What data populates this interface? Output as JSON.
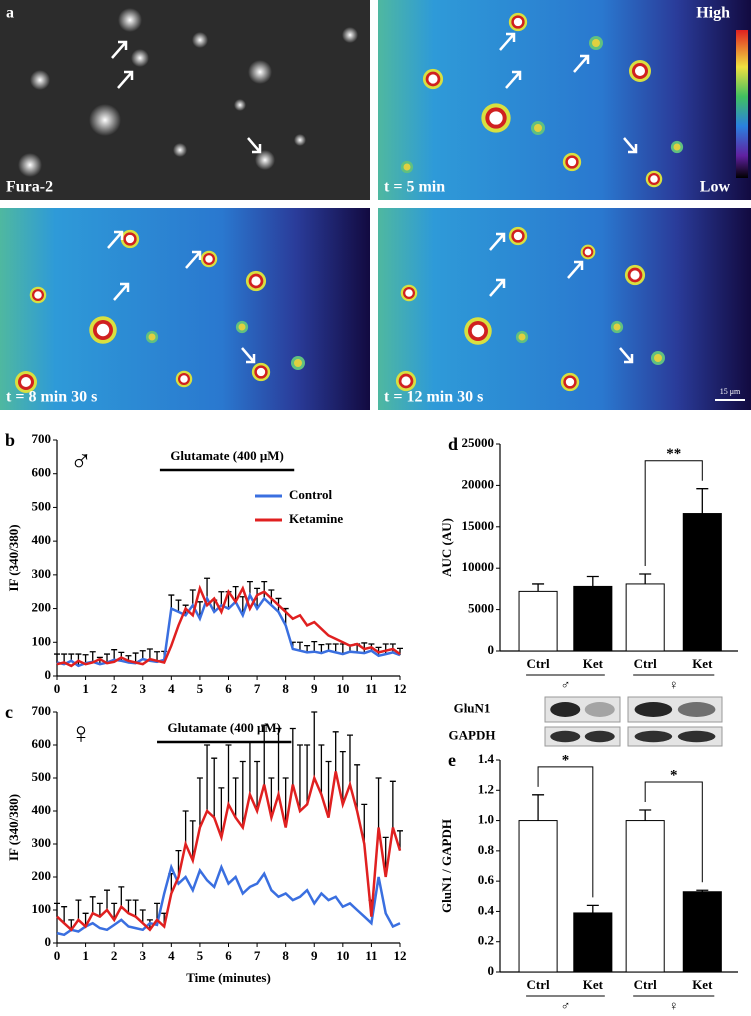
{
  "panel_a": {
    "label": "a",
    "images": [
      "Fura-2",
      "t = 5 min",
      "t = 8 min 30 s",
      "t = 12 min 30 s"
    ],
    "colorbar": [
      "High",
      "Low"
    ],
    "scale_bar": "15 μm"
  },
  "chart_data": [
    {
      "type": "line",
      "panel": "b",
      "symbol": "♂",
      "annotation": "Glutamate (400 μM)",
      "annotation_span": [
        3.6,
        8.3
      ],
      "ylabel": "IF (340/380)",
      "x": [
        0,
        0.25,
        0.5,
        0.75,
        1,
        1.25,
        1.5,
        1.75,
        2,
        2.25,
        2.5,
        2.75,
        3,
        3.25,
        3.5,
        3.75,
        4,
        4.25,
        4.5,
        4.75,
        5,
        5.25,
        5.5,
        5.75,
        6,
        6.25,
        6.5,
        6.75,
        7,
        7.25,
        7.5,
        7.75,
        8,
        8.25,
        8.5,
        8.75,
        9,
        9.25,
        9.5,
        9.75,
        10,
        10.25,
        10.5,
        10.75,
        11,
        11.25,
        11.5,
        11.75,
        12
      ],
      "xlim": [
        0,
        12
      ],
      "xticks": [
        0,
        1,
        2,
        3,
        4,
        5,
        6,
        7,
        8,
        9,
        10,
        11,
        12
      ],
      "ylim": [
        0,
        700
      ],
      "yticks": [
        0,
        100,
        200,
        300,
        400,
        500,
        600,
        700
      ],
      "series": [
        {
          "name": "Control",
          "color": "#3a6fe0",
          "values": [
            40,
            35,
            45,
            30,
            38,
            42,
            35,
            40,
            48,
            45,
            40,
            38,
            50,
            45,
            42,
            48,
            200,
            190,
            180,
            210,
            170,
            230,
            190,
            210,
            200,
            220,
            180,
            240,
            200,
            230,
            210,
            190,
            150,
            80,
            75,
            70,
            72,
            68,
            75,
            70,
            65,
            72,
            70,
            68,
            75,
            60,
            65,
            70,
            62
          ],
          "errors": [
            25,
            30,
            20,
            35,
            25,
            30,
            20,
            25,
            30,
            25,
            20,
            30,
            25,
            35,
            30,
            25,
            40,
            35,
            30,
            45,
            50,
            60,
            35,
            40,
            50,
            45,
            55,
            40,
            60,
            50,
            45,
            40,
            50,
            20,
            25,
            20,
            30,
            25,
            20,
            25,
            30,
            20,
            25,
            30,
            20,
            25,
            30,
            25,
            20
          ]
        },
        {
          "name": "Ketamine",
          "color": "#e02020",
          "values": [
            35,
            40,
            30,
            45,
            35,
            40,
            50,
            38,
            42,
            55,
            45,
            40,
            35,
            50,
            45,
            40,
            90,
            150,
            200,
            180,
            260,
            210,
            230,
            190,
            250,
            220,
            260,
            200,
            240,
            250,
            230,
            210,
            190,
            170,
            180,
            150,
            160,
            140,
            120,
            110,
            100,
            90,
            95,
            80,
            85,
            70,
            75,
            80,
            65
          ]
        }
      ]
    },
    {
      "type": "line",
      "panel": "c",
      "symbol": "♀",
      "annotation": "Glutamate (400 μM)",
      "annotation_span": [
        3.5,
        8.2
      ],
      "ylabel": "IF (340/380)",
      "xlabel": "Time (minutes)",
      "x": [
        0,
        0.25,
        0.5,
        0.75,
        1,
        1.25,
        1.5,
        1.75,
        2,
        2.25,
        2.5,
        2.75,
        3,
        3.25,
        3.5,
        3.75,
        4,
        4.25,
        4.5,
        4.75,
        5,
        5.25,
        5.5,
        5.75,
        6,
        6.25,
        6.5,
        6.75,
        7,
        7.25,
        7.5,
        7.75,
        8,
        8.25,
        8.5,
        8.75,
        9,
        9.25,
        9.5,
        9.75,
        10,
        10.25,
        10.5,
        10.75,
        11,
        11.25,
        11.5,
        11.75,
        12
      ],
      "xlim": [
        0,
        12
      ],
      "xticks": [
        0,
        1,
        2,
        3,
        4,
        5,
        6,
        7,
        8,
        9,
        10,
        11,
        12
      ],
      "ylim": [
        0,
        700
      ],
      "yticks": [
        0,
        100,
        200,
        300,
        400,
        500,
        600,
        700
      ],
      "series": [
        {
          "color": "#3a6fe0",
          "values": [
            30,
            25,
            40,
            35,
            50,
            60,
            45,
            40,
            55,
            70,
            50,
            45,
            40,
            60,
            55,
            150,
            230,
            180,
            200,
            160,
            220,
            190,
            170,
            230,
            180,
            200,
            150,
            170,
            180,
            210,
            160,
            140,
            150,
            130,
            140,
            160,
            120,
            150,
            130,
            140,
            110,
            120,
            100,
            80,
            60,
            200,
            90,
            50,
            60
          ]
        },
        {
          "color": "#e02020",
          "values": [
            80,
            60,
            40,
            70,
            50,
            90,
            80,
            100,
            70,
            110,
            90,
            80,
            60,
            40,
            70,
            50,
            150,
            200,
            300,
            250,
            350,
            400,
            380,
            320,
            420,
            380,
            350,
            450,
            400,
            480,
            380,
            450,
            350,
            480,
            400,
            420,
            500,
            450,
            380,
            520,
            420,
            480,
            400,
            300,
            80,
            350,
            200,
            350,
            280
          ],
          "errors": [
            40,
            50,
            30,
            60,
            40,
            50,
            40,
            60,
            50,
            60,
            40,
            50,
            40,
            30,
            50,
            40,
            60,
            80,
            100,
            120,
            150,
            200,
            180,
            150,
            180,
            120,
            200,
            160,
            150,
            180,
            120,
            200,
            150,
            170,
            200,
            180,
            200,
            150,
            170,
            120,
            160,
            150,
            140,
            120,
            50,
            150,
            120,
            140,
            60
          ]
        }
      ]
    },
    {
      "type": "bar",
      "panel": "d",
      "ylabel": "AUC (AU)",
      "categories": [
        "Ctrl",
        "Ket",
        "Ctrl",
        "Ket"
      ],
      "groups": [
        "♂",
        "♀"
      ],
      "values": [
        7200,
        7800,
        8100,
        16600
      ],
      "errors": [
        900,
        1200,
        1200,
        3000
      ],
      "colors": [
        "#ffffff",
        "#000000",
        "#ffffff",
        "#000000"
      ],
      "significance": [
        null,
        "**"
      ],
      "ylim": [
        0,
        25000
      ],
      "yticks": [
        0,
        5000,
        10000,
        15000,
        20000,
        25000
      ]
    },
    {
      "type": "bar",
      "panel": "e",
      "ylabel": "GluN1 / GAPDH",
      "blot_labels": [
        "GluN1",
        "GAPDH"
      ],
      "categories": [
        "Ctrl",
        "Ket",
        "Ctrl",
        "Ket"
      ],
      "groups": [
        "♂",
        "♀"
      ],
      "values": [
        1.0,
        0.39,
        1.0,
        0.53
      ],
      "errors": [
        0.17,
        0.05,
        0.07,
        0.01
      ],
      "colors": [
        "#ffffff",
        "#000000",
        "#ffffff",
        "#000000"
      ],
      "significance": [
        "*",
        "*"
      ],
      "ylim": [
        0,
        1.4
      ],
      "yticks": [
        0,
        0.2,
        0.4,
        0.6,
        0.8,
        {
          "value": 1,
          "label": "1.0"
        },
        1.2,
        1.4
      ]
    }
  ]
}
